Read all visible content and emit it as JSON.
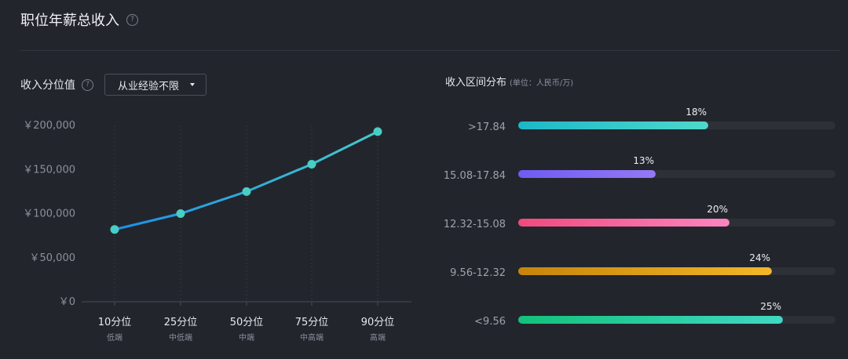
{
  "header": {
    "title": "职位年薪总收入",
    "help_icon": "?"
  },
  "left_panel": {
    "label": "收入分位值",
    "help_icon": "?",
    "dropdown_value": "从业经验不限"
  },
  "right_panel": {
    "title": "收入区间分布",
    "unit": "(单位：人民币/万)"
  },
  "chart_data": [
    {
      "type": "line",
      "categories": [
        "10分位",
        "25分位",
        "50分位",
        "75分位",
        "90分位"
      ],
      "sub_labels": [
        "低端",
        "中低端",
        "中端",
        "中高端",
        "高端"
      ],
      "values": [
        82000,
        100000,
        125000,
        156000,
        193000
      ],
      "y_ticks": [
        "￥200,000",
        "￥150,000",
        "￥100,000",
        "￥50,000",
        "￥0"
      ],
      "ylim": [
        0,
        200000
      ],
      "grid": "vertical dashed",
      "colors": [
        "#1a8fe8",
        "#45c9c9"
      ],
      "point_color": "#48cec5"
    },
    {
      "type": "bar",
      "orientation": "horizontal",
      "categories": [
        ">17.84",
        "15.08-17.84",
        "12.32-15.08",
        "9.56-12.32",
        "<9.56"
      ],
      "values": [
        18,
        13,
        20,
        24,
        25
      ],
      "labels": [
        "18%",
        "13%",
        "20%",
        "24%",
        "25%"
      ],
      "xlim": [
        0,
        30
      ],
      "colors": [
        [
          "#1cb8c8",
          "#4fd8cc"
        ],
        [
          "#6e5bf2",
          "#9478f5"
        ],
        [
          "#f04a7d",
          "#fb86bf"
        ],
        [
          "#c6840a",
          "#f3b727"
        ],
        [
          "#13c17a",
          "#40d8c3"
        ]
      ]
    }
  ]
}
